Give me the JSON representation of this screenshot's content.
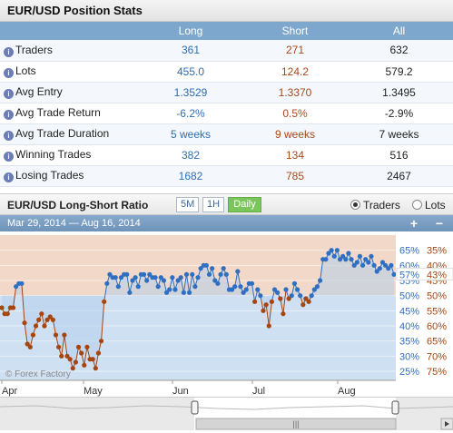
{
  "stats": {
    "title": "EUR/USD Position Stats",
    "columns": [
      "Long",
      "Short",
      "All"
    ],
    "rows": [
      {
        "label": "Traders",
        "long": "361",
        "short": "271",
        "all": "632"
      },
      {
        "label": "Lots",
        "long": "455.0",
        "short": "124.2",
        "all": "579.2"
      },
      {
        "label": "Avg Entry",
        "long": "1.3529",
        "short": "1.3370",
        "all": "1.3495"
      },
      {
        "label": "Avg Trade Return",
        "long": "-6.2%",
        "short": "0.5%",
        "all": "-2.9%"
      },
      {
        "label": "Avg Trade Duration",
        "long": "5 weeks",
        "short": "9 weeks",
        "all": "7 weeks"
      },
      {
        "label": "Winning Trades",
        "long": "382",
        "short": "134",
        "all": "516"
      },
      {
        "label": "Losing Trades",
        "long": "1682",
        "short": "785",
        "all": "2467"
      }
    ]
  },
  "ratio": {
    "title": "EUR/USD Long-Short Ratio",
    "timeframes": [
      "5M",
      "1H",
      "Daily"
    ],
    "active_timeframe": "Daily",
    "radio_traders": "Traders",
    "radio_lots": "Lots",
    "selected": "Traders",
    "date_range": "Mar 29, 2014 — Aug 16, 2014",
    "zoom_in": "+",
    "zoom_out": "−",
    "watermark": "© Forex Factory",
    "nav_grip": "|||"
  },
  "chart_data": {
    "type": "line",
    "y_left_ticks": [
      "65%",
      "60%",
      "55%",
      "50%",
      "45%",
      "40%",
      "35%",
      "30%",
      "25%"
    ],
    "y_right_ticks": [
      "35%",
      "40%",
      "45%",
      "50%",
      "55%",
      "60%",
      "65%",
      "70%",
      "75%"
    ],
    "x_labels": [
      "Apr",
      "May",
      "Jun",
      "Jul",
      "Aug"
    ],
    "current_long": "57%",
    "current_short": "43%",
    "ylim": [
      22,
      70
    ],
    "long_color": "#2f6fc2",
    "short_color": "#a5450f",
    "above_fill": "#f2d8c8",
    "below_fill": "#cfe0f3",
    "series": [
      {
        "name": "Long %",
        "values": [
          46,
          44,
          44,
          46,
          46,
          53,
          54,
          54,
          41,
          34,
          33,
          37,
          40,
          42,
          44,
          40,
          42,
          43,
          42,
          37,
          33,
          30,
          37,
          30,
          29,
          26,
          28,
          33,
          31,
          27,
          33,
          29,
          29,
          26,
          31,
          35,
          48,
          54,
          57,
          56,
          56,
          53,
          56,
          57,
          57,
          51,
          55,
          56,
          53,
          57,
          57,
          55,
          57,
          56,
          56,
          53,
          56,
          55,
          51,
          52,
          56,
          52,
          55,
          56,
          51,
          57,
          51,
          57,
          53,
          56,
          59,
          60,
          60,
          57,
          59,
          55,
          54,
          57,
          59,
          57,
          52,
          52,
          53,
          58,
          53,
          51,
          52,
          54,
          54,
          48,
          52,
          50,
          45,
          47,
          40,
          48,
          52,
          51,
          49,
          44,
          52,
          49,
          50,
          54,
          52,
          50,
          47,
          49,
          48,
          50,
          52,
          53,
          55,
          62,
          62,
          64,
          65,
          63,
          65,
          62,
          63,
          62,
          64,
          62,
          60,
          61,
          63,
          60,
          62,
          61,
          63,
          60,
          58,
          59,
          61,
          60,
          59,
          60,
          57
        ]
      }
    ]
  }
}
